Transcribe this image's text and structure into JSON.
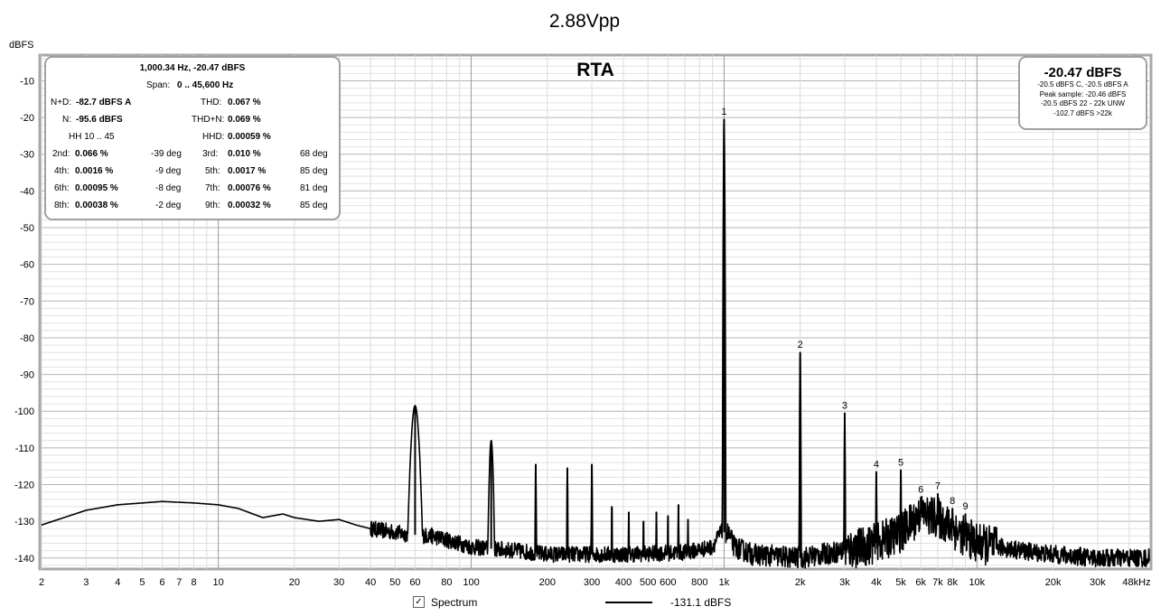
{
  "chart_data": {
    "type": "line",
    "title": "2.88Vpp",
    "plot_label": "RTA",
    "ylabel": "dBFS",
    "xscale": "log",
    "xlim": [
      2,
      48000
    ],
    "ylim": [
      -143,
      -3
    ],
    "grid": true,
    "y_ticks": [
      -10,
      -20,
      -30,
      -40,
      -50,
      -60,
      -70,
      -80,
      -90,
      -100,
      -110,
      -120,
      -130,
      -140
    ],
    "x_ticks": [
      {
        "v": 2,
        "label": "2"
      },
      {
        "v": 3,
        "label": "3"
      },
      {
        "v": 4,
        "label": "4"
      },
      {
        "v": 5,
        "label": "5"
      },
      {
        "v": 6,
        "label": "6"
      },
      {
        "v": 7,
        "label": "7"
      },
      {
        "v": 8,
        "label": "8"
      },
      {
        "v": 10,
        "label": "10"
      },
      {
        "v": 20,
        "label": "20"
      },
      {
        "v": 30,
        "label": "30"
      },
      {
        "v": 40,
        "label": "40"
      },
      {
        "v": 50,
        "label": "50"
      },
      {
        "v": 60,
        "label": "60"
      },
      {
        "v": 80,
        "label": "80"
      },
      {
        "v": 100,
        "label": "100"
      },
      {
        "v": 200,
        "label": "200"
      },
      {
        "v": 300,
        "label": "300"
      },
      {
        "v": 400,
        "label": "400"
      },
      {
        "v": 500,
        "label": "500"
      },
      {
        "v": 600,
        "label": "600"
      },
      {
        "v": 800,
        "label": "800"
      },
      {
        "v": 1000,
        "label": "1k"
      },
      {
        "v": 2000,
        "label": "2k"
      },
      {
        "v": 3000,
        "label": "3k"
      },
      {
        "v": 4000,
        "label": "4k"
      },
      {
        "v": 5000,
        "label": "5k"
      },
      {
        "v": 6000,
        "label": "6k"
      },
      {
        "v": 7000,
        "label": "7k"
      },
      {
        "v": 8000,
        "label": "8k"
      },
      {
        "v": 10000,
        "label": "10k"
      },
      {
        "v": 20000,
        "label": "20k"
      },
      {
        "v": 30000,
        "label": "30k"
      },
      {
        "v": 48000,
        "label": "48kHz"
      }
    ],
    "series": [
      {
        "name": "Spectrum",
        "noise_floor": [
          [
            2,
            -131
          ],
          [
            3,
            -127
          ],
          [
            4,
            -125.5
          ],
          [
            6,
            -124.6
          ],
          [
            8,
            -125
          ],
          [
            10,
            -125.5
          ],
          [
            12,
            -126.5
          ],
          [
            15,
            -129
          ],
          [
            18,
            -128
          ],
          [
            20,
            -129
          ],
          [
            25,
            -130
          ],
          [
            30,
            -129.5
          ],
          [
            35,
            -131
          ],
          [
            40,
            -132
          ],
          [
            50,
            -133
          ],
          [
            55,
            -133.5
          ],
          [
            70,
            -134
          ],
          [
            90,
            -136
          ],
          [
            100,
            -137
          ],
          [
            150,
            -138
          ],
          [
            200,
            -139
          ],
          [
            400,
            -139
          ],
          [
            700,
            -138.5
          ],
          [
            900,
            -137
          ],
          [
            970,
            -133
          ],
          [
            1030,
            -133
          ],
          [
            1100,
            -137
          ],
          [
            1300,
            -139
          ],
          [
            2000,
            -140
          ],
          [
            3000,
            -138
          ],
          [
            4000,
            -136
          ],
          [
            5000,
            -133
          ],
          [
            6000,
            -128
          ],
          [
            7000,
            -129
          ],
          [
            8000,
            -132
          ],
          [
            10000,
            -136
          ],
          [
            15000,
            -138
          ],
          [
            20000,
            -139
          ],
          [
            30000,
            -140
          ],
          [
            48000,
            -140
          ]
        ],
        "peaks": [
          {
            "f": 60,
            "db": -98.5
          },
          {
            "f": 120,
            "db": -108
          },
          {
            "f": 180,
            "db": -114.5
          },
          {
            "f": 240,
            "db": -115.5
          },
          {
            "f": 300,
            "db": -114.5
          },
          {
            "f": 360,
            "db": -126
          },
          {
            "f": 420,
            "db": -127.5
          },
          {
            "f": 480,
            "db": -130
          },
          {
            "f": 540,
            "db": -127.5
          },
          {
            "f": 600,
            "db": -128.5
          },
          {
            "f": 660,
            "db": -125.5
          },
          {
            "f": 720,
            "db": -129.5
          },
          {
            "f": 1000,
            "db": -20.5
          },
          {
            "f": 2000,
            "db": -84
          },
          {
            "f": 3000,
            "db": -100.5
          },
          {
            "f": 4000,
            "db": -116.5
          },
          {
            "f": 5000,
            "db": -116
          },
          {
            "f": 6000,
            "db": -123.5
          },
          {
            "f": 7000,
            "db": -122.5
          },
          {
            "f": 8000,
            "db": -126.5
          },
          {
            "f": 9000,
            "db": -128
          }
        ]
      }
    ],
    "harmonic_markers": [
      {
        "label": "1",
        "f": 1000,
        "db": -20.5
      },
      {
        "label": "2",
        "f": 2000,
        "db": -84
      },
      {
        "label": "3",
        "f": 3000,
        "db": -100.5
      },
      {
        "label": "4",
        "f": 4000,
        "db": -116.5
      },
      {
        "label": "5",
        "f": 5000,
        "db": -116
      },
      {
        "label": "6",
        "f": 6000,
        "db": -123.5
      },
      {
        "label": "7",
        "f": 7000,
        "db": -122.5
      },
      {
        "label": "8",
        "f": 8000,
        "db": -126.5
      },
      {
        "label": "9",
        "f": 9000,
        "db": -128
      }
    ]
  },
  "stats": {
    "header": "1,000.34 Hz, -20.47 dBFS",
    "span_label": "Span:",
    "span_value": "0 .. 45,600 Hz",
    "nd_label": "N+D:",
    "nd_value": "-82.7 dBFS A",
    "thd_label": "THD:",
    "thd_value": "0.067 %",
    "n_label": "N:",
    "n_value": "-95.6 dBFS",
    "thdn_label": "THD+N:",
    "thdn_value": "0.069 %",
    "hh_label": "HH 10 .. 45",
    "hhd_label": "HHD:",
    "hhd_value": "0.00059 %",
    "harmonics": [
      {
        "l_label": "2nd:",
        "l_value": "0.066 %",
        "l_deg": "-39 deg",
        "r_label": "3rd:",
        "r_value": "0.010 %",
        "r_deg": "68 deg"
      },
      {
        "l_label": "4th:",
        "l_value": "0.0016 %",
        "l_deg": "-9 deg",
        "r_label": "5th:",
        "r_value": "0.0017 %",
        "r_deg": "85 deg"
      },
      {
        "l_label": "6th:",
        "l_value": "0.00095 %",
        "l_deg": "-8 deg",
        "r_label": "7th:",
        "r_value": "0.00076 %",
        "r_deg": "81 deg"
      },
      {
        "l_label": "8th:",
        "l_value": "0.00038 %",
        "l_deg": "-2 deg",
        "r_label": "9th:",
        "r_value": "0.00032 %",
        "r_deg": "85 deg"
      }
    ]
  },
  "level": {
    "main": "-20.47 dBFS",
    "lines": [
      "-20.5 dBFS C, -20.5 dBFS A",
      "Peak sample: -20.46 dBFS",
      "-20.5 dBFS 22 - 22k UNW",
      "-102.7 dBFS >22k"
    ]
  },
  "legend": {
    "checkbox_mark": "✓",
    "label": "Spectrum",
    "value": "-131.1 dBFS"
  }
}
